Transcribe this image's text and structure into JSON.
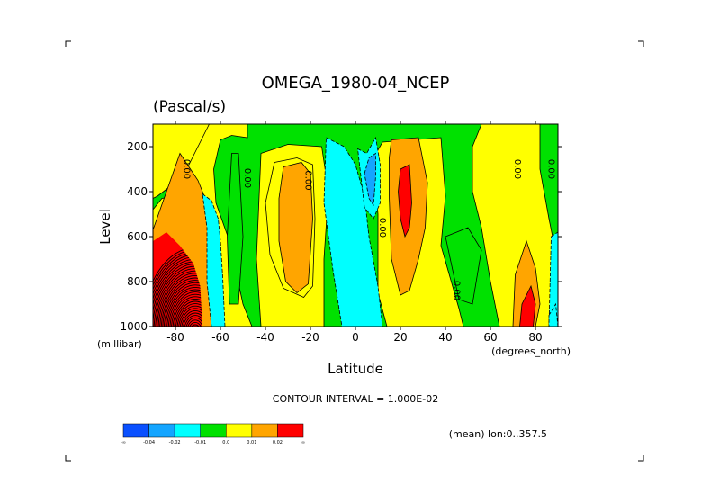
{
  "chart_data": {
    "type": "contour",
    "title": "OMEGA_1980-04_NCEP",
    "units": "(Pascal/s)",
    "xlabel": "Latitude",
    "ylabel": "Level",
    "x_unit_label": "(degrees_north)",
    "y_unit_label": "(millibar)",
    "xlim": [
      -90,
      90
    ],
    "ylim": [
      1000,
      100
    ],
    "x_ticks": [
      -80,
      -60,
      -40,
      -20,
      0,
      20,
      40,
      60,
      80
    ],
    "x_tick_labels": [
      "-80",
      "-60",
      "-40",
      "-20",
      "0",
      "20",
      "40",
      "60",
      "80"
    ],
    "y_ticks": [
      200,
      400,
      600,
      800,
      1000
    ],
    "y_tick_labels": [
      "200",
      "400",
      "600",
      "800",
      "1000"
    ],
    "contour_interval_text": "CONTOUR INTERVAL = 1.000E-02",
    "contour_labels": [
      {
        "text": "0.00",
        "lat": -75,
        "level": 300
      },
      {
        "text": "0.00",
        "lat": -48,
        "level": 340
      },
      {
        "text": "0.00",
        "lat": -21,
        "level": 350
      },
      {
        "text": "0.00",
        "lat": 12,
        "level": 560
      },
      {
        "text": "0.00",
        "lat": 45,
        "level": 840
      },
      {
        "text": "0.00",
        "lat": 72,
        "level": 300
      },
      {
        "text": "0.00",
        "lat": 87,
        "level": 300
      }
    ],
    "colorbar": {
      "colors": [
        "#0a50ff",
        "#14a5ff",
        "#00ffff",
        "#00e100",
        "#ffff00",
        "#ffa500",
        "#ff0000"
      ],
      "labels": [
        "-∞",
        "-0.04",
        "-0.02",
        "-0.01",
        "0.0",
        "0.01",
        "0.02",
        "∞"
      ]
    },
    "regions": [
      {
        "level": "0.01",
        "pts": [
          [
            -78,
            230
          ],
          [
            -70,
            350
          ],
          [
            -66,
            450
          ],
          [
            -64,
            600
          ],
          [
            -62,
            780
          ],
          [
            -64,
            1000
          ],
          [
            -90,
            1000
          ],
          [
            -90,
            570
          ]
        ]
      },
      {
        "level": "0.0",
        "pts": [
          [
            -36,
            270
          ],
          [
            -26,
            250
          ],
          [
            -19,
            280
          ],
          [
            -18,
            520
          ],
          [
            -19,
            820
          ],
          [
            -23,
            870
          ],
          [
            -32,
            830
          ],
          [
            -38,
            680
          ],
          [
            -40,
            450
          ]
        ]
      },
      {
        "level": "0.01",
        "pts": [
          [
            -32,
            290
          ],
          [
            -24,
            270
          ],
          [
            -20,
            320
          ],
          [
            -19,
            520
          ],
          [
            -21,
            810
          ],
          [
            -26,
            850
          ],
          [
            -31,
            800
          ],
          [
            -34,
            620
          ],
          [
            -34,
            430
          ]
        ]
      },
      {
        "level": "-0.01",
        "pts": [
          [
            -13,
            160
          ],
          [
            -5,
            200
          ],
          [
            0,
            280
          ],
          [
            4,
            420
          ],
          [
            6,
            600
          ],
          [
            10,
            820
          ],
          [
            12,
            1000
          ],
          [
            -6,
            1000
          ],
          [
            -10,
            750
          ],
          [
            -14,
            450
          ]
        ]
      },
      {
        "level": "-0.01",
        "pts": [
          [
            1,
            210
          ],
          [
            5,
            230
          ],
          [
            9,
            160
          ],
          [
            11,
            280
          ],
          [
            11,
            450
          ],
          [
            8,
            520
          ],
          [
            4,
            470
          ]
        ]
      },
      {
        "level": "-0.02",
        "pts": [
          [
            4,
            320
          ],
          [
            6,
            250
          ],
          [
            9,
            230
          ],
          [
            9,
            330
          ],
          [
            8,
            460
          ],
          [
            6,
            430
          ]
        ]
      },
      {
        "level": "-0.01",
        "pts": [
          [
            -68,
            410
          ],
          [
            -64,
            440
          ],
          [
            -61,
            520
          ],
          [
            -60,
            620
          ],
          [
            -59,
            780
          ],
          [
            -58,
            1000
          ],
          [
            -64,
            1000
          ],
          [
            -66,
            800
          ],
          [
            -66,
            560
          ]
        ]
      },
      {
        "level": "0.01",
        "pts": [
          [
            16,
            170
          ],
          [
            28,
            160
          ],
          [
            32,
            360
          ],
          [
            31,
            560
          ],
          [
            28,
            700
          ],
          [
            24,
            840
          ],
          [
            20,
            860
          ],
          [
            16,
            700
          ],
          [
            15,
            420
          ],
          [
            15,
            250
          ]
        ]
      },
      {
        "level": "0.02",
        "pts": [
          [
            20,
            300
          ],
          [
            24,
            280
          ],
          [
            25,
            450
          ],
          [
            24,
            560
          ],
          [
            22,
            600
          ],
          [
            20,
            520
          ],
          [
            19,
            400
          ]
        ]
      },
      {
        "level": "0.01",
        "pts": [
          [
            71,
            770
          ],
          [
            76,
            620
          ],
          [
            80,
            740
          ],
          [
            82,
            900
          ],
          [
            80,
            1000
          ],
          [
            70,
            1000
          ]
        ]
      },
      {
        "level": "0.02",
        "pts": [
          [
            74,
            900
          ],
          [
            78,
            820
          ],
          [
            80,
            900
          ],
          [
            79,
            1000
          ],
          [
            73,
            1000
          ]
        ]
      },
      {
        "level": "-0.01",
        "pts": [
          [
            87,
            600
          ],
          [
            90,
            580
          ],
          [
            90,
            1000
          ],
          [
            86,
            1000
          ]
        ]
      },
      {
        "level": "-0.01",
        "pts": [
          [
            86,
            950
          ],
          [
            89,
            900
          ],
          [
            90,
            1000
          ],
          [
            86,
            1000
          ]
        ]
      }
    ],
    "footnote": "(mean) lon:0..357.5"
  }
}
